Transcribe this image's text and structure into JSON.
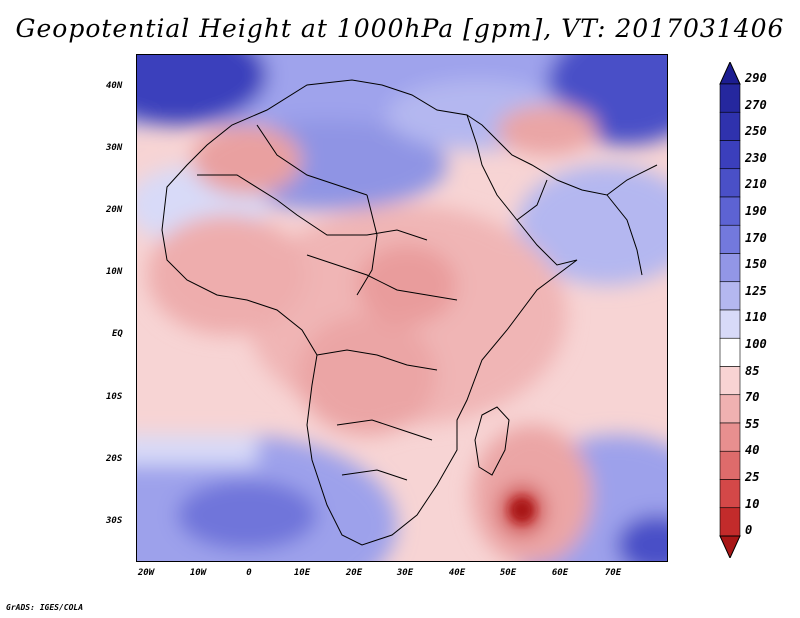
{
  "title": "Geopotential Height at 1000hPa [gpm], VT: 2017031406",
  "credit": "GrADS: IGES/COLA",
  "y_axis": [
    "40N",
    "30N",
    "20N",
    "10N",
    "EQ",
    "10S",
    "20S",
    "30S"
  ],
  "x_axis": [
    "20W",
    "10W",
    "0",
    "10E",
    "20E",
    "30E",
    "40E",
    "50E",
    "60E",
    "70E"
  ],
  "colorbar": {
    "labels": [
      "290",
      "270",
      "250",
      "230",
      "210",
      "190",
      "170",
      "150",
      "125",
      "110",
      "100",
      "85",
      "70",
      "55",
      "40",
      "25",
      "10",
      "0"
    ],
    "colors": [
      "#1c1d91",
      "#25279e",
      "#2f32ad",
      "#3b3fbc",
      "#4a50c7",
      "#5d63d3",
      "#7379dd",
      "#9296e6",
      "#b4b7f0",
      "#d8daf8",
      "#ffffff",
      "#f8d3d3",
      "#f0b1b1",
      "#e88f8f",
      "#de6b6b",
      "#d44848",
      "#c32b2b",
      "#a81616"
    ]
  }
}
